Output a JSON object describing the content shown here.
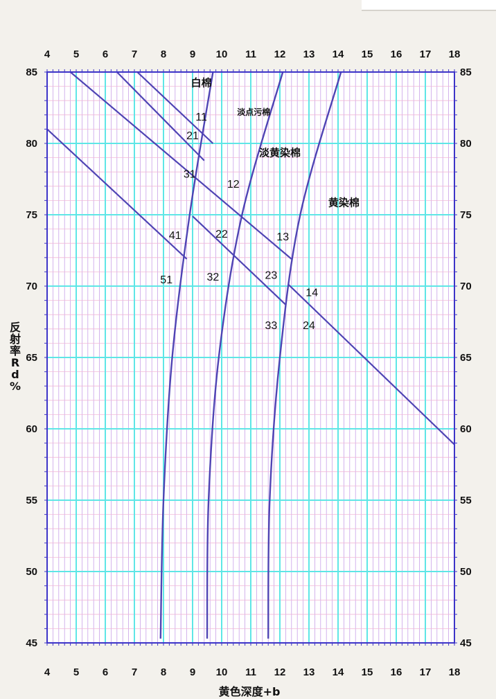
{
  "chart_data": {
    "type": "line",
    "title": "",
    "xlabel": "黄色深度+b",
    "ylabel": "反射率Rd%",
    "xlim": [
      4,
      18
    ],
    "ylim": [
      45,
      85
    ],
    "x_ticks": [
      4,
      5,
      6,
      7,
      8,
      9,
      10,
      11,
      12,
      13,
      14,
      15,
      16,
      17,
      18
    ],
    "y_ticks": [
      45,
      50,
      55,
      60,
      65,
      70,
      75,
      80,
      85
    ],
    "grid": true,
    "colors": {
      "major_grid": "#5ee6e6",
      "minor_grid_x": "#c8a0e8",
      "minor_grid_y": "#f0b8d8",
      "series": "#4f44b4",
      "frame": "#3d34c8",
      "background": "#ffffff"
    },
    "boundary_curves": [
      {
        "x": [
          7.9,
          8.0,
          8.3,
          8.9,
          9.7
        ],
        "y": [
          45.3,
          55,
          65,
          75,
          85
        ]
      },
      {
        "x": [
          9.5,
          9.55,
          9.9,
          10.7,
          12.1
        ],
        "y": [
          45.3,
          55,
          65,
          75,
          85
        ]
      },
      {
        "x": [
          11.6,
          11.65,
          12.0,
          12.7,
          14.1
        ],
        "y": [
          45.3,
          55,
          65,
          75,
          85
        ]
      }
    ],
    "grade_lines": [
      {
        "x": [
          7.1,
          9.7
        ],
        "y": [
          85,
          80.0
        ]
      },
      {
        "x": [
          6.4,
          9.4
        ],
        "y": [
          85,
          78.8
        ]
      },
      {
        "x": [
          4.8,
          12.4
        ],
        "y": [
          85,
          71.9
        ]
      },
      {
        "x": [
          4.0,
          8.8
        ],
        "y": [
          81.0,
          71.9
        ]
      },
      {
        "x": [
          9.0,
          12.2
        ],
        "y": [
          74.9,
          68.7
        ]
      },
      {
        "x": [
          12.3,
          18.0
        ],
        "y": [
          70.1,
          58.9
        ]
      }
    ],
    "annotations": [
      {
        "text": "白棉",
        "x": 9.3,
        "y": 84.0,
        "type": "region"
      },
      {
        "text": "淡点污棉",
        "x": 11.1,
        "y": 82.0,
        "type": "region-small"
      },
      {
        "text": "淡黄染棉",
        "x": 12.0,
        "y": 79.1,
        "type": "region"
      },
      {
        "text": "黄染棉",
        "x": 14.2,
        "y": 75.6,
        "type": "region"
      },
      {
        "text": "11",
        "x": 9.3,
        "y": 81.6,
        "type": "grade"
      },
      {
        "text": "21",
        "x": 9.0,
        "y": 80.3,
        "type": "grade"
      },
      {
        "text": "31",
        "x": 8.9,
        "y": 77.6,
        "type": "grade"
      },
      {
        "text": "12",
        "x": 10.4,
        "y": 76.9,
        "type": "grade"
      },
      {
        "text": "41",
        "x": 8.4,
        "y": 73.3,
        "type": "grade"
      },
      {
        "text": "22",
        "x": 10.0,
        "y": 73.4,
        "type": "grade"
      },
      {
        "text": "13",
        "x": 12.1,
        "y": 73.2,
        "type": "grade"
      },
      {
        "text": "51",
        "x": 8.1,
        "y": 70.2,
        "type": "grade"
      },
      {
        "text": "32",
        "x": 9.7,
        "y": 70.4,
        "type": "grade"
      },
      {
        "text": "23",
        "x": 11.7,
        "y": 70.5,
        "type": "grade"
      },
      {
        "text": "14",
        "x": 13.1,
        "y": 69.3,
        "type": "grade"
      },
      {
        "text": "33",
        "x": 11.7,
        "y": 67.0,
        "type": "grade"
      },
      {
        "text": "24",
        "x": 13.0,
        "y": 67.0,
        "type": "grade"
      }
    ]
  }
}
